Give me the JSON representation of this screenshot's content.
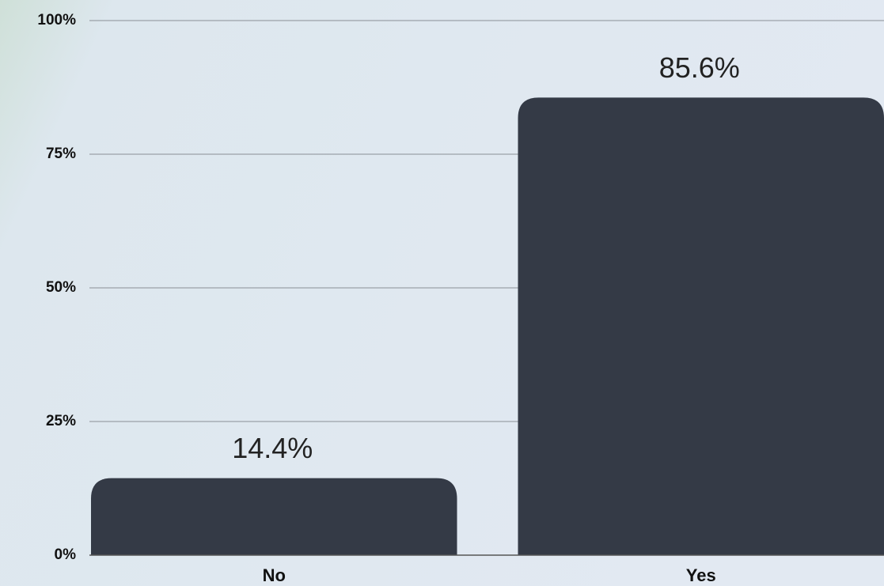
{
  "chart_data": {
    "type": "bar",
    "categories": [
      "No",
      "Yes"
    ],
    "values": [
      14.4,
      85.6
    ],
    "value_labels": [
      "14.4%",
      "85.6%"
    ],
    "color": "#343a46",
    "ylim": [
      0,
      100
    ],
    "yticks": [
      {
        "value": 0,
        "label": "0%"
      },
      {
        "value": 25,
        "label": "25%"
      },
      {
        "value": 50,
        "label": "50%"
      },
      {
        "value": 75,
        "label": "75%"
      },
      {
        "value": 100,
        "label": "100%"
      }
    ],
    "grid": true
  }
}
